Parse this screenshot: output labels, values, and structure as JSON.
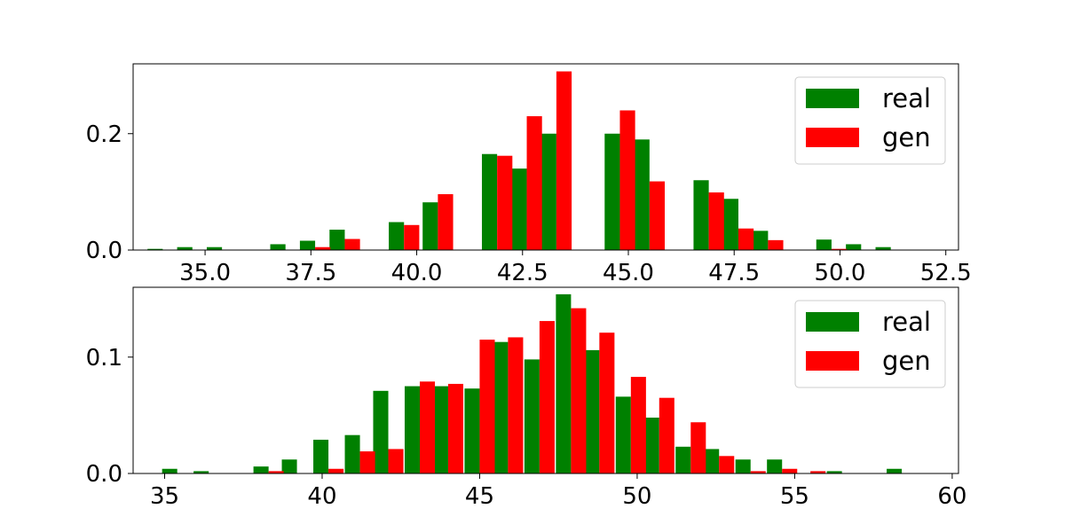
{
  "chart_data": [
    {
      "type": "bar",
      "title": "",
      "xlabel": "",
      "ylabel": "",
      "xlim": [
        33.3,
        52.8
      ],
      "ylim": [
        0,
        0.32
      ],
      "xticks": [
        35.0,
        37.5,
        40.0,
        42.5,
        45.0,
        47.5,
        50.0,
        52.5
      ],
      "xtick_labels": [
        "35.0",
        "37.5",
        "40.0",
        "42.5",
        "45.0",
        "47.5",
        "50.0",
        "52.5"
      ],
      "yticks": [
        0.0,
        0.2
      ],
      "ytick_labels": [
        "0.0",
        "0.2"
      ],
      "bin_width": 0.72,
      "x": [
        34.0,
        34.7,
        35.4,
        36.2,
        36.9,
        37.6,
        38.3,
        39.0,
        39.7,
        40.5,
        41.2,
        41.9,
        42.6,
        43.3,
        44.0,
        44.8,
        45.5,
        46.2,
        46.9,
        47.6,
        48.3,
        49.1,
        49.8,
        50.5,
        51.2
      ],
      "grid": false,
      "legend_position": "top-right",
      "series": [
        {
          "name": "real",
          "color": "#008000",
          "values": [
            0.002,
            0.005,
            0.005,
            0,
            0.01,
            0.016,
            0.035,
            0,
            0.048,
            0.082,
            0,
            0.165,
            0.14,
            0.2,
            0,
            0.2,
            0.19,
            0,
            0.12,
            0.088,
            0.033,
            0,
            0.018,
            0.01,
            0.005
          ]
        },
        {
          "name": "gen",
          "color": "#ff0000",
          "values": [
            0,
            0,
            0,
            0,
            0,
            0.005,
            0.019,
            0,
            0.043,
            0.096,
            0,
            0.162,
            0.23,
            0.307,
            0,
            0.24,
            0.118,
            0,
            0.099,
            0.037,
            0.017,
            0,
            0.002,
            0,
            0
          ]
        }
      ]
    },
    {
      "type": "bar",
      "title": "",
      "xlabel": "",
      "ylabel": "",
      "xlim": [
        34.0,
        60.2
      ],
      "ylim": [
        0,
        0.16
      ],
      "xticks": [
        35,
        40,
        45,
        50,
        55,
        60
      ],
      "xtick_labels": [
        "35",
        "40",
        "45",
        "50",
        "55",
        "60"
      ],
      "yticks": [
        0.0,
        0.1
      ],
      "ytick_labels": [
        "0.0",
        "0.1"
      ],
      "bin_width": 0.96,
      "x": [
        35.4,
        36.4,
        37.3,
        38.3,
        39.2,
        40.2,
        41.2,
        42.1,
        43.1,
        44.0,
        45.0,
        45.9,
        46.9,
        47.9,
        48.8,
        49.8,
        50.7,
        51.7,
        52.6,
        53.6,
        54.6,
        55.5,
        56.5,
        57.4,
        58.4
      ],
      "grid": false,
      "legend_position": "top-right",
      "series": [
        {
          "name": "real",
          "color": "#008000",
          "values": [
            0.004,
            0.002,
            0,
            0.006,
            0.012,
            0.029,
            0.033,
            0.071,
            0.075,
            0.075,
            0.073,
            0.113,
            0.098,
            0.154,
            0.106,
            0.066,
            0.048,
            0.023,
            0.021,
            0.012,
            0.012,
            0,
            0.002,
            0,
            0.004
          ]
        },
        {
          "name": "gen",
          "color": "#ff0000",
          "values": [
            0,
            0,
            0,
            0.002,
            0,
            0.004,
            0.019,
            0.021,
            0.079,
            0.077,
            0.115,
            0.117,
            0.131,
            0.142,
            0.121,
            0.083,
            0.065,
            0.044,
            0.015,
            0.002,
            0.004,
            0.002,
            0,
            0,
            0
          ]
        }
      ]
    }
  ]
}
